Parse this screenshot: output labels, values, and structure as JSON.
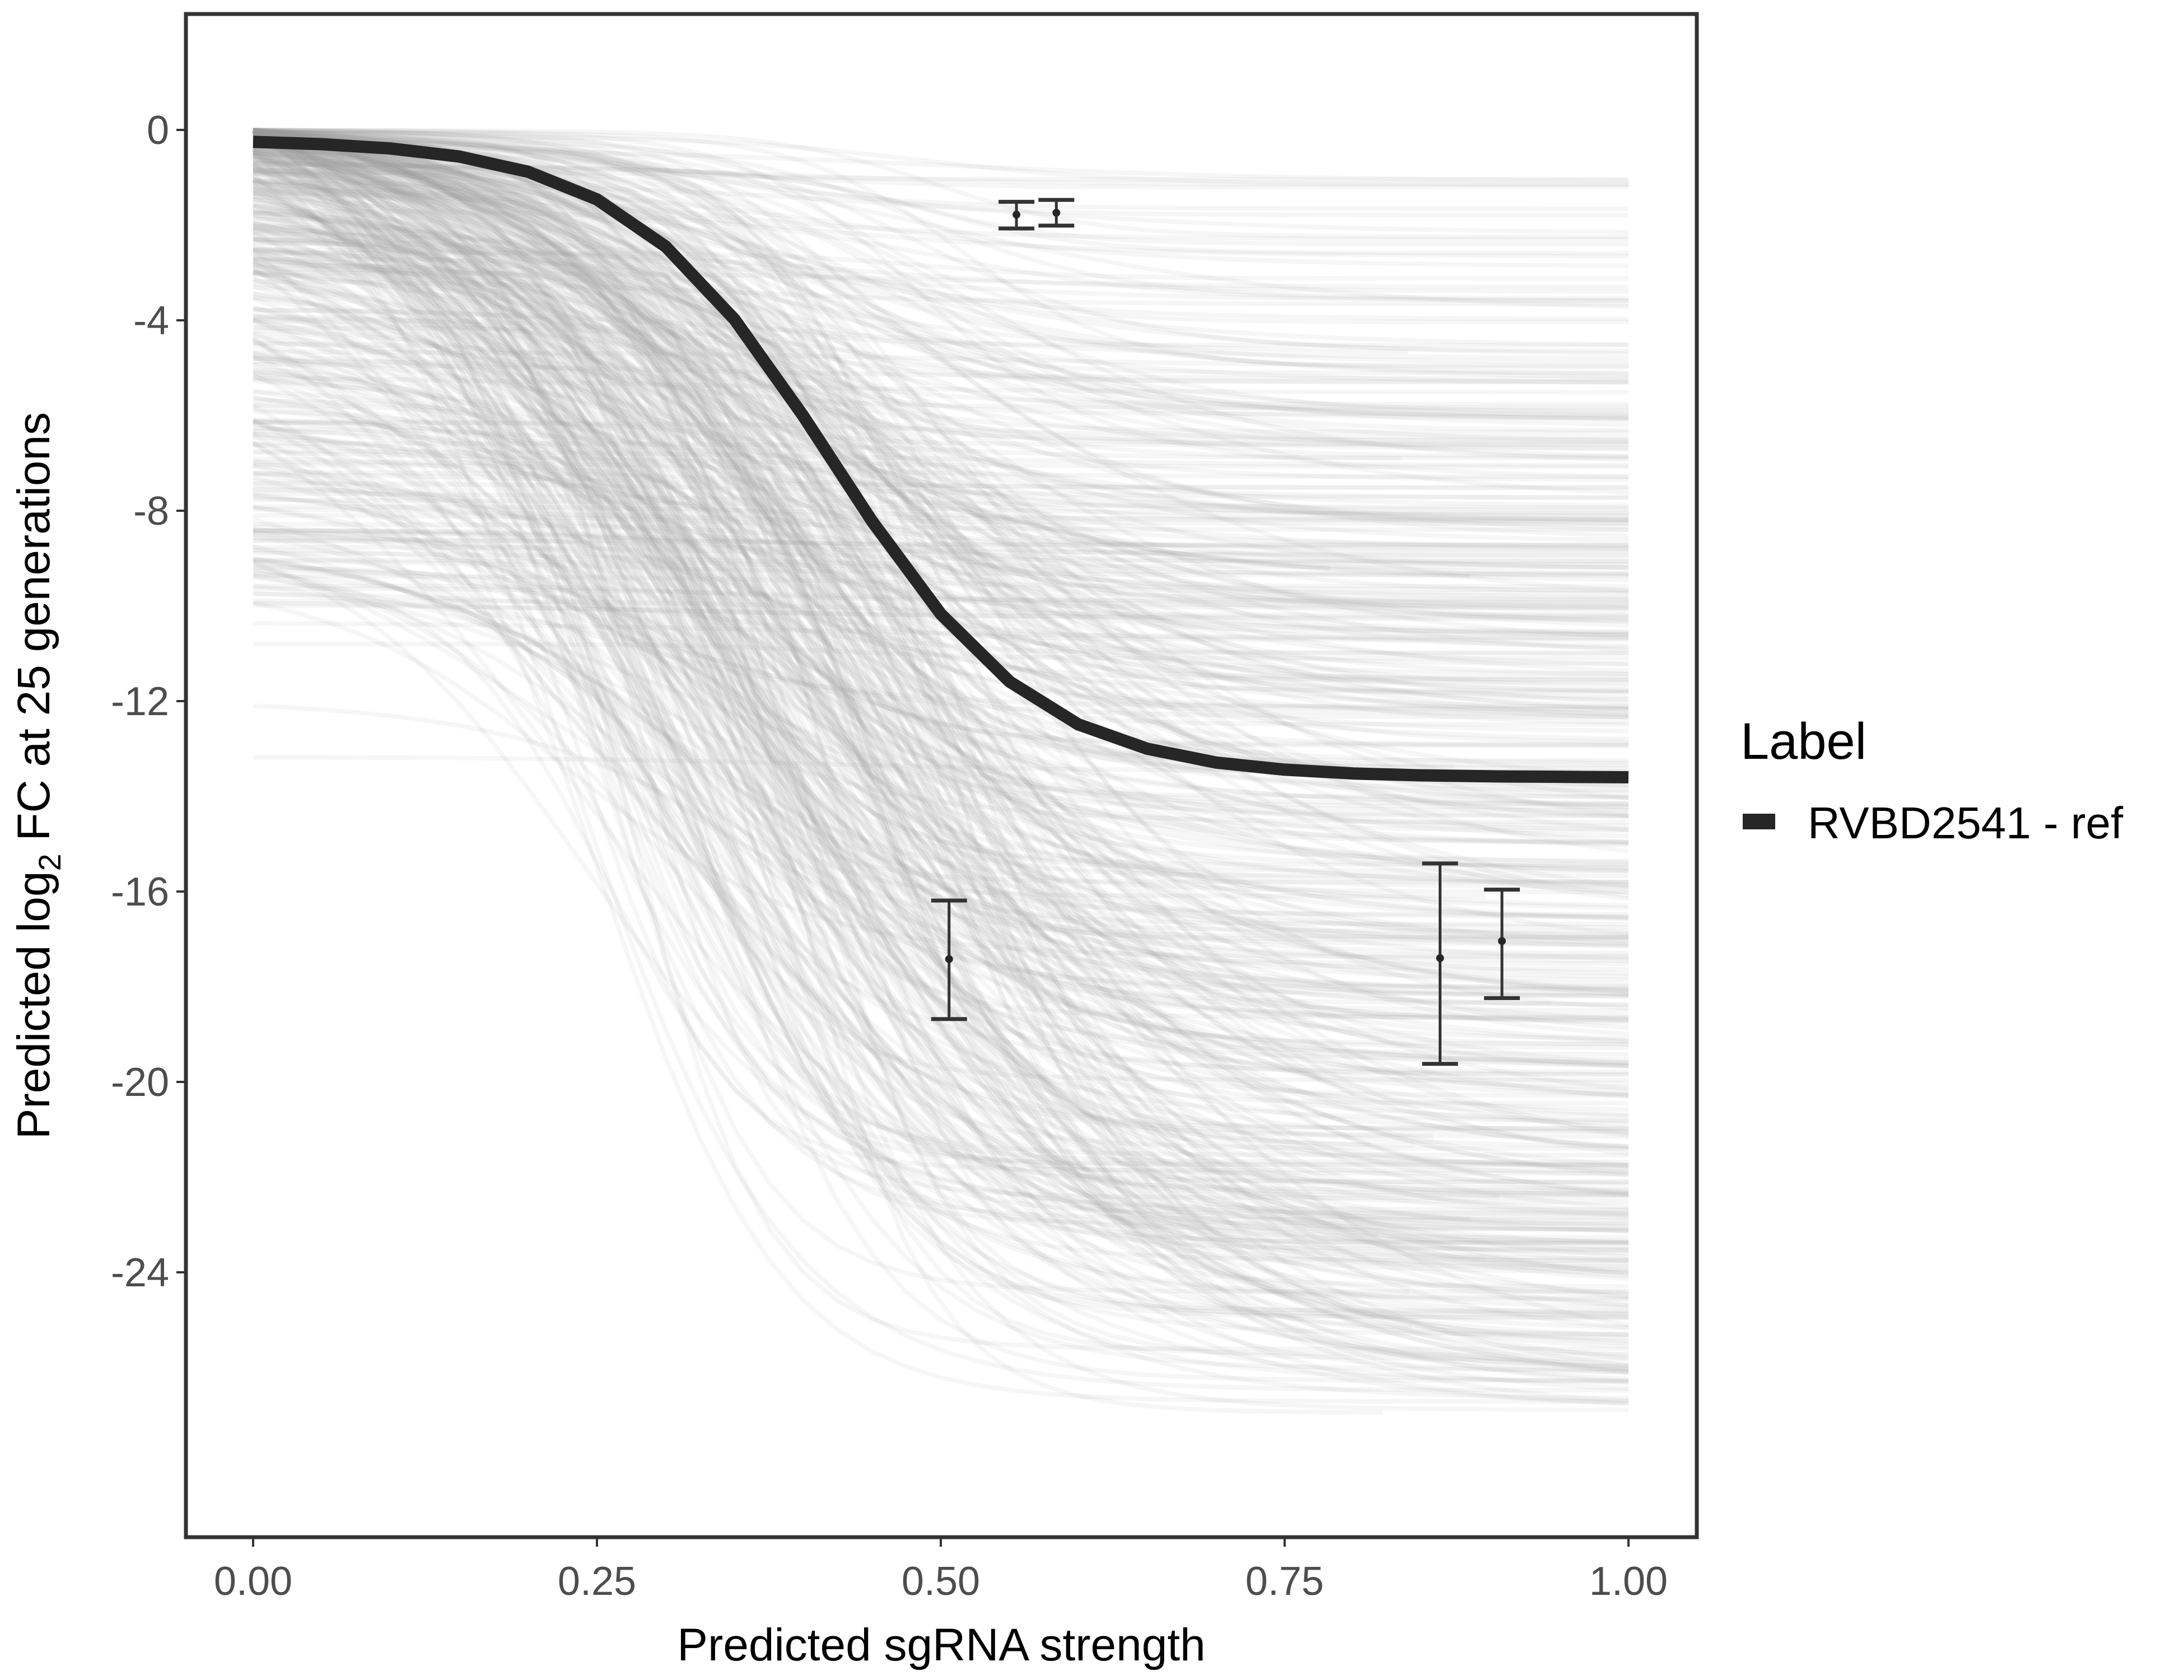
{
  "chart_data": {
    "type": "line",
    "title": "",
    "xlabel": "Predicted sgRNA strength",
    "ylabel_parts": [
      "Predicted  log",
      "2",
      " FC at 25 generations"
    ],
    "xlim": [
      -0.05,
      1.05
    ],
    "ylim": [
      -30.3,
      2.5
    ],
    "x_ticks": [
      0,
      0.25,
      0.5,
      0.75,
      1
    ],
    "x_tick_labels": [
      "0.00",
      "0.25",
      "0.50",
      "0.75",
      "1.00"
    ],
    "y_ticks": [
      0,
      -4,
      -8,
      -12,
      -16,
      -20,
      -24
    ],
    "y_tick_labels": [
      "0",
      "-4",
      "-8",
      "-12",
      "-16",
      "-20",
      "-24"
    ],
    "grid": false,
    "legend": {
      "title": "Label",
      "placement": "right",
      "entries": [
        {
          "label": "RVBD2541 - ref",
          "color": "#262626"
        }
      ]
    },
    "fitted_curve": {
      "name": "RVBD2541 - ref",
      "color": "#262626",
      "x": [
        0,
        0.05,
        0.1,
        0.15,
        0.2,
        0.25,
        0.3,
        0.35,
        0.4,
        0.45,
        0.5,
        0.55,
        0.6,
        0.65,
        0.7,
        0.75,
        0.8,
        0.85,
        0.9,
        0.95,
        1.0
      ],
      "y": [
        -0.25,
        -0.3,
        -0.39,
        -0.56,
        -0.88,
        -1.46,
        -2.45,
        -3.98,
        -6.01,
        -8.22,
        -10.17,
        -11.59,
        -12.49,
        -13.0,
        -13.29,
        -13.44,
        -13.52,
        -13.56,
        -13.58,
        -13.59,
        -13.6
      ]
    },
    "posterior_draws": {
      "color": "#9a9a9a",
      "count": 500
    },
    "error_bars": [
      {
        "x": 0.555,
        "y": -1.78,
        "ymin": -2.07,
        "ymax": -1.51
      },
      {
        "x": 0.584,
        "y": -1.74,
        "ymin": -2.01,
        "ymax": -1.47
      },
      {
        "x": 0.506,
        "y": -17.42,
        "ymin": -18.68,
        "ymax": -16.19
      },
      {
        "x": 0.863,
        "y": -17.4,
        "ymin": -19.62,
        "ymax": -15.41
      },
      {
        "x": 0.908,
        "y": -17.04,
        "ymin": -18.24,
        "ymax": -15.96
      }
    ]
  }
}
